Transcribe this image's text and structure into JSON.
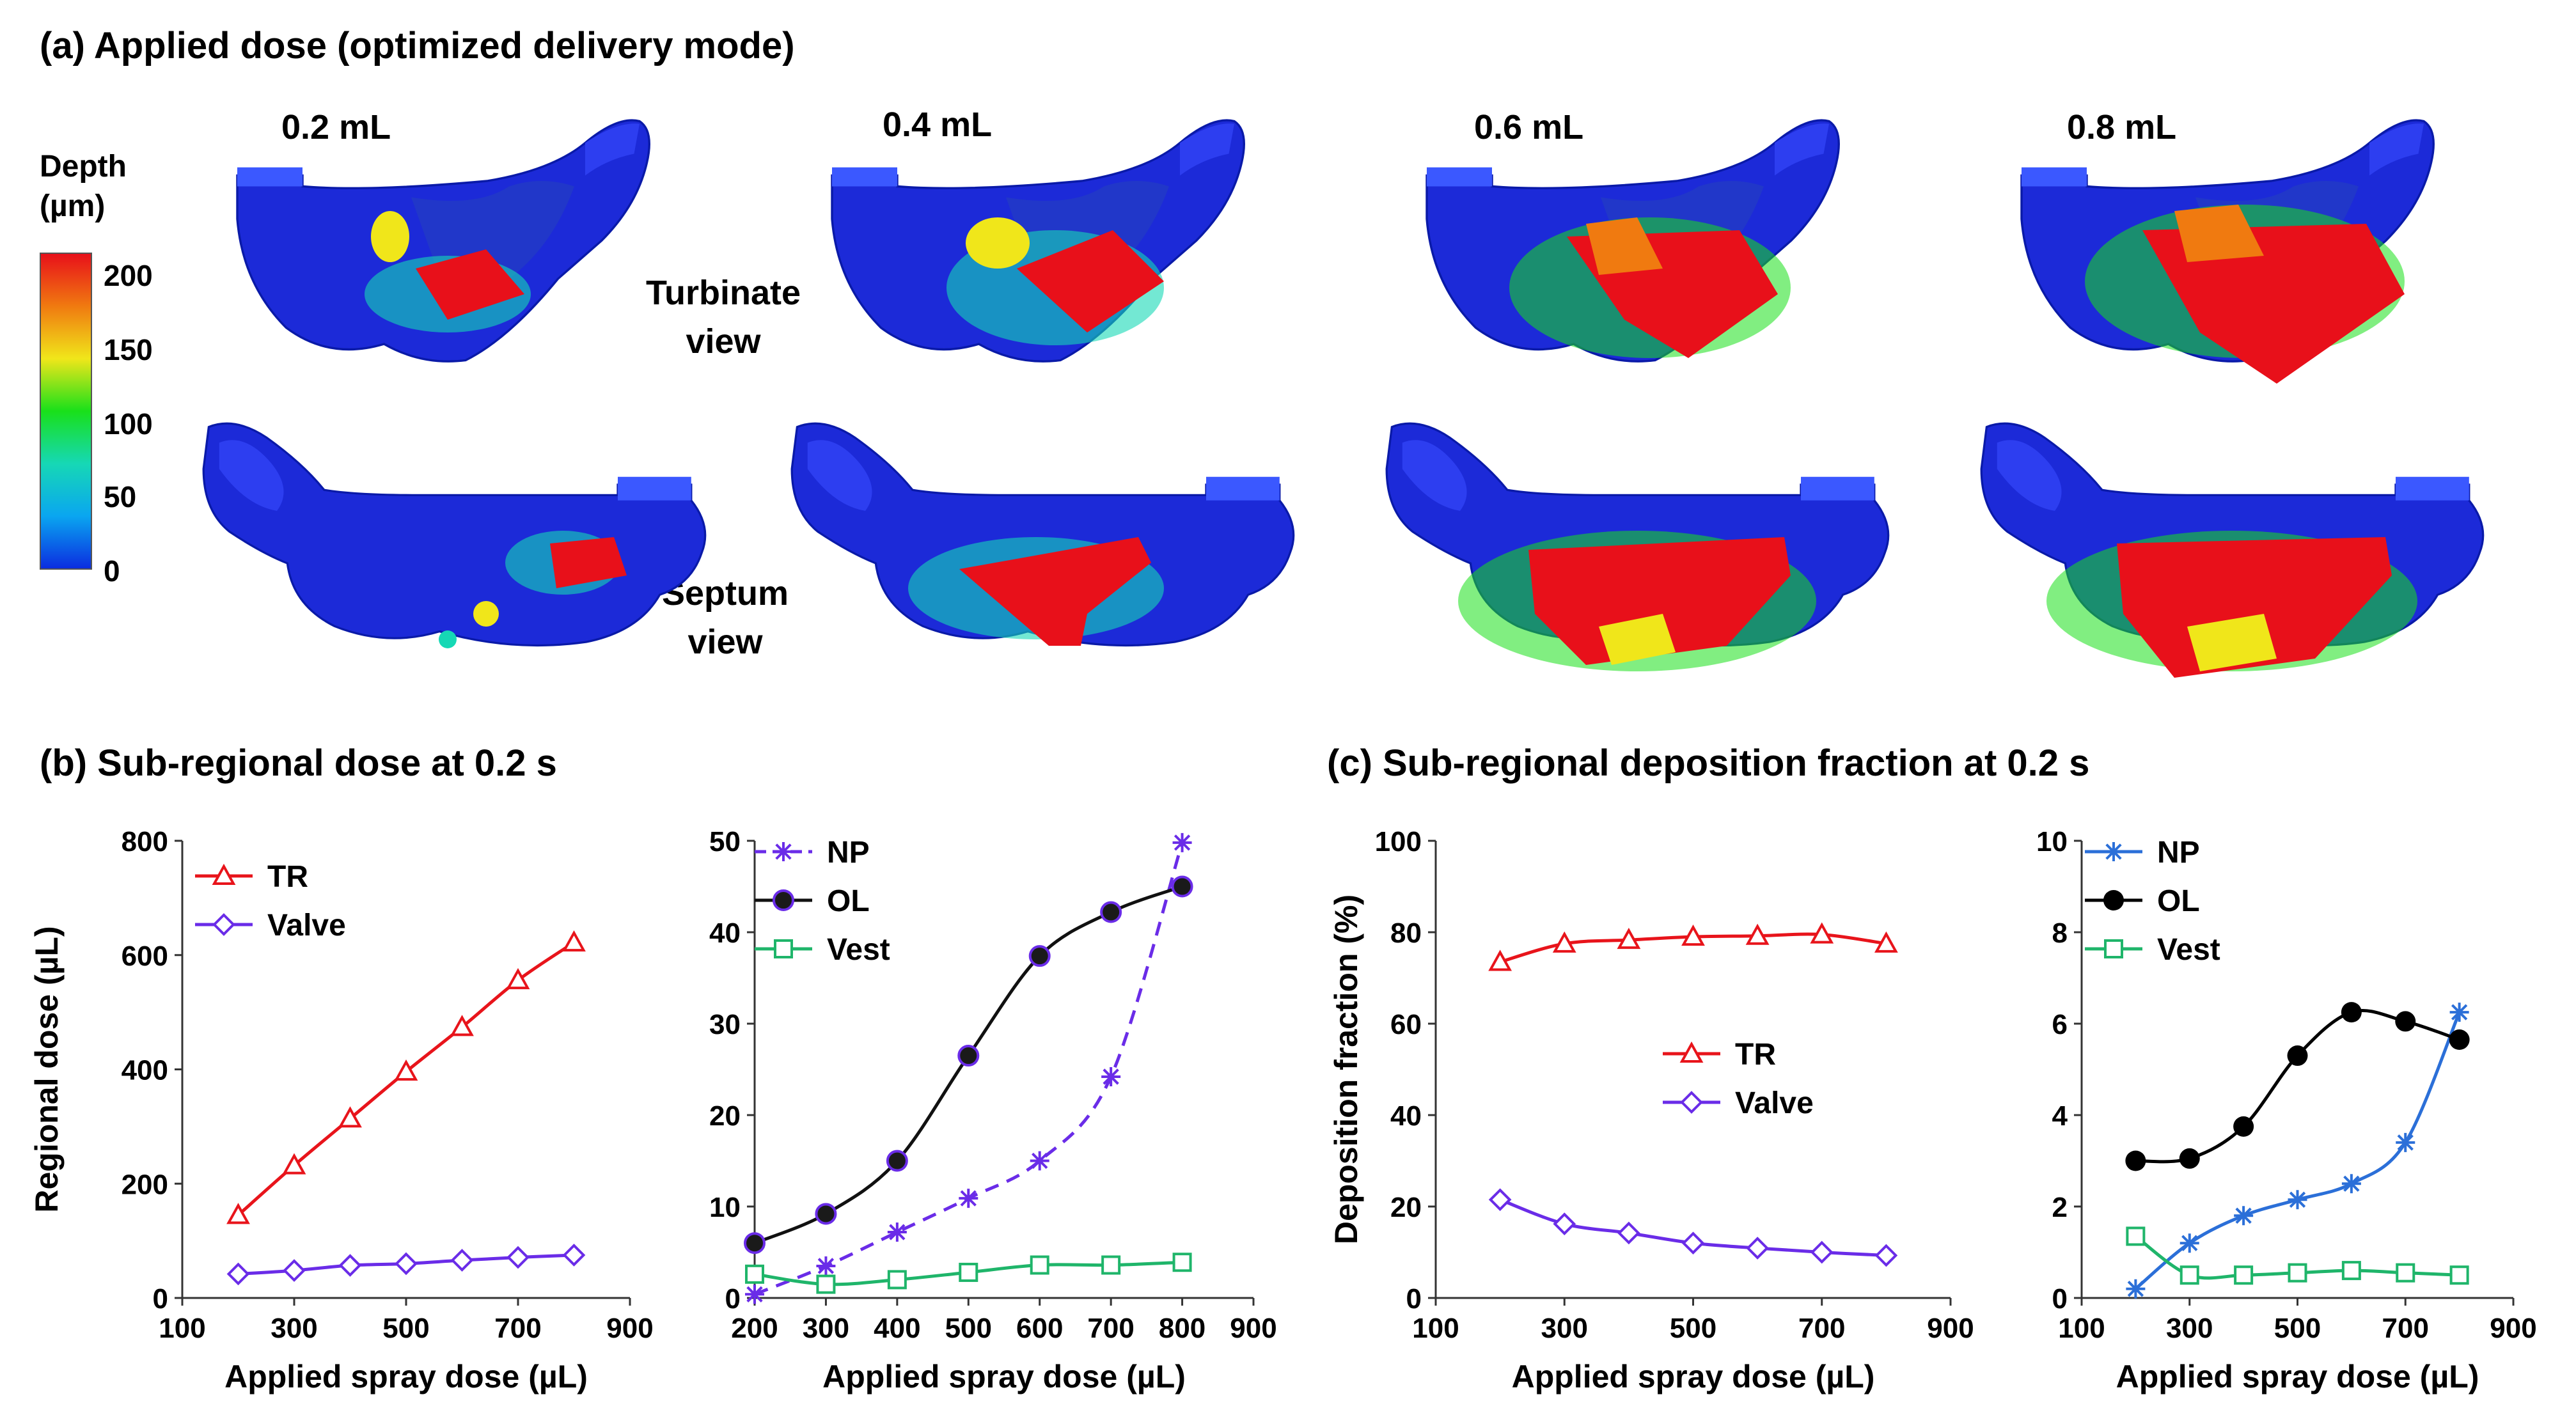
{
  "panel_a": {
    "title": "(a) Applied dose (optimized delivery mode)",
    "doses": [
      "0.2 mL",
      "0.4 mL",
      "0.6 mL",
      "0.8 mL"
    ],
    "turbinate_view_label": [
      "Turbinate",
      "view"
    ],
    "septum_view_label": [
      "Septum",
      "view"
    ],
    "colorbar": {
      "title": [
        "Depth",
        "(µm)"
      ],
      "ticks": [
        "200",
        "150",
        "100",
        "50",
        "0"
      ],
      "colors": [
        "#e8101a",
        "#f07a10",
        "#f0e61a",
        "#19e01a",
        "#16d8b5",
        "#0aa6f0",
        "#0b2de0"
      ]
    }
  },
  "panel_b_title": "(b) Sub-regional dose at 0.2 s",
  "panel_c_title": "(c) Sub-regional deposition fraction at 0.2 s",
  "chart_data": [
    {
      "id": "b1",
      "type": "line",
      "xlabel": "Applied spray dose (µL)",
      "ylabel": "Regional dose (µL)",
      "xlim": [
        100,
        900
      ],
      "ylim": [
        0,
        800
      ],
      "xticks": [
        100,
        300,
        500,
        700,
        900
      ],
      "yticks": [
        0,
        200,
        400,
        600,
        800
      ],
      "x": [
        200,
        300,
        400,
        500,
        600,
        700,
        800
      ],
      "series": [
        {
          "name": "TR",
          "color": "#e8141b",
          "marker": "triangle",
          "dash": "",
          "values": [
            145,
            232,
            314,
            396,
            474,
            556,
            622
          ]
        },
        {
          "name": "Valve",
          "color": "#6a2ce8",
          "marker": "diamond",
          "dash": "",
          "values": [
            42,
            48,
            57,
            60,
            66,
            71,
            75
          ]
        }
      ]
    },
    {
      "id": "b2",
      "type": "line",
      "xlabel": "Applied spray dose (µL)",
      "ylabel": "",
      "xlim": [
        200,
        900
      ],
      "ylim": [
        0,
        50
      ],
      "xticks": [
        200,
        300,
        400,
        500,
        600,
        700,
        800,
        900
      ],
      "yticks": [
        0,
        10,
        20,
        30,
        40,
        50
      ],
      "x": [
        200,
        300,
        400,
        500,
        600,
        700,
        800
      ],
      "series": [
        {
          "name": "NP",
          "color": "#6a2ce8",
          "marker": "star",
          "dash": "22,14",
          "values": [
            0.4,
            3.5,
            7.2,
            10.9,
            15.0,
            24.2,
            49.8
          ]
        },
        {
          "name": "OL",
          "color": "#111111",
          "marker": "circle",
          "dash": "",
          "values": [
            6.0,
            9.2,
            15.0,
            26.5,
            37.4,
            42.2,
            45.0
          ]
        },
        {
          "name": "Vest",
          "color": "#1fb56a",
          "marker": "square",
          "dash": "",
          "values": [
            2.6,
            1.5,
            2.0,
            2.8,
            3.6,
            3.6,
            3.9
          ]
        }
      ]
    },
    {
      "id": "c1",
      "type": "line",
      "xlabel": "Applied spray dose (µL)",
      "ylabel": "Deposition fraction (%)",
      "xlim": [
        100,
        900
      ],
      "ylim": [
        0,
        100
      ],
      "xticks": [
        100,
        300,
        500,
        700,
        900
      ],
      "yticks": [
        0,
        20,
        40,
        60,
        80,
        100
      ],
      "x": [
        200,
        300,
        400,
        500,
        600,
        700,
        800
      ],
      "series": [
        {
          "name": "TR",
          "color": "#e8141b",
          "marker": "triangle",
          "dash": "",
          "values": [
            73.5,
            77.5,
            78.3,
            79.0,
            79.2,
            79.5,
            77.5
          ]
        },
        {
          "name": "Valve",
          "color": "#6a2ce8",
          "marker": "diamond",
          "dash": "",
          "values": [
            21.5,
            16.2,
            14.2,
            12.0,
            10.9,
            10.0,
            9.3
          ]
        }
      ]
    },
    {
      "id": "c2",
      "type": "line",
      "xlabel": "Applied spray dose (µL)",
      "ylabel": "",
      "xlim": [
        100,
        900
      ],
      "ylim": [
        0,
        10
      ],
      "xticks": [
        100,
        300,
        500,
        700,
        900
      ],
      "yticks": [
        0,
        2,
        4,
        6,
        8,
        10
      ],
      "x": [
        200,
        300,
        400,
        500,
        600,
        700,
        800
      ],
      "series": [
        {
          "name": "NP",
          "color": "#2b6fd8",
          "marker": "star",
          "dash": "",
          "values": [
            0.2,
            1.2,
            1.8,
            2.15,
            2.5,
            3.4,
            6.25
          ]
        },
        {
          "name": "OL",
          "color": "#000000",
          "marker": "dot",
          "dash": "",
          "values": [
            3.0,
            3.05,
            3.75,
            5.3,
            6.25,
            6.05,
            5.65
          ]
        },
        {
          "name": "Vest",
          "color": "#1fb56a",
          "marker": "square",
          "dash": "",
          "values": [
            1.35,
            0.5,
            0.5,
            0.55,
            0.6,
            0.55,
            0.5
          ]
        }
      ]
    }
  ]
}
